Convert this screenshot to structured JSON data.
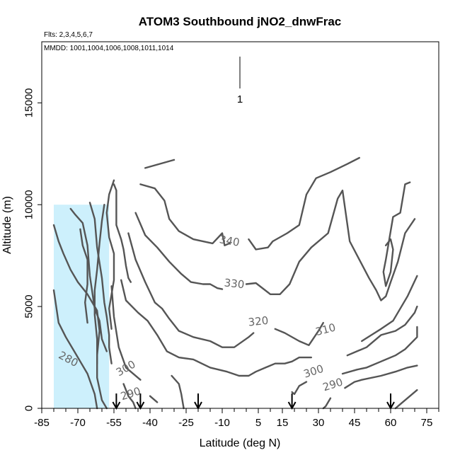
{
  "chart_data": {
    "type": "contour",
    "title": "ATOM3 Southbound jNO2_dnwFrac",
    "subtitle_flights": "Flts: 2,3,4,5,6,7",
    "subtitle_dates": "MMDD: 1001,1004,1006,1008,1011,1014",
    "xlabel": "Latitude (deg N)",
    "ylabel": "Altitude (m)",
    "xlim": [
      -85,
      80
    ],
    "ylim": [
      0,
      18000
    ],
    "x_ticks": [
      -85,
      -70,
      -55,
      -40,
      -25,
      -10,
      5,
      15,
      30,
      45,
      60,
      75
    ],
    "x_tick_labels": [
      "-85",
      "-70",
      "-55",
      "-40",
      "-25",
      "-10",
      "5",
      "15",
      "30",
      "45",
      "60",
      "75"
    ],
    "y_ticks": [
      0,
      5000,
      10000,
      15000
    ],
    "y_tick_labels": [
      "0",
      "5000",
      "10000",
      "15000"
    ],
    "colorbar_value_label": "1",
    "shaded_region": {
      "x": [
        -80,
        -57
      ],
      "y": [
        0,
        10000
      ],
      "color": "#cdf0fc"
    },
    "arrow_latitudes": [
      -54,
      -44,
      -20,
      19,
      60
    ],
    "contour_labels": [
      {
        "text": "340",
        "x": -7,
        "y": 8200,
        "angle": -10
      },
      {
        "text": "330",
        "x": -5,
        "y": 6100,
        "angle": -6
      },
      {
        "text": "320",
        "x": 5,
        "y": 4250,
        "angle": 6
      },
      {
        "text": "310",
        "x": 33,
        "y": 3850,
        "angle": 15
      },
      {
        "text": "300",
        "x": 28,
        "y": 1800,
        "angle": 18
      },
      {
        "text": "290",
        "x": 36,
        "y": 1150,
        "angle": 18
      },
      {
        "text": "300",
        "x": -50,
        "y": 1950,
        "angle": 30
      },
      {
        "text": "290",
        "x": -48,
        "y": 700,
        "angle": 18
      },
      {
        "text": "280",
        "x": -74,
        "y": 2400,
        "angle": -28
      }
    ],
    "contours": [
      {
        "level": 340,
        "points": [
          [
            -42,
            11800
          ],
          [
            -30,
            12200
          ]
        ]
      },
      {
        "level": 340,
        "points": [
          [
            -44,
            11000
          ],
          [
            -38,
            10800
          ],
          [
            -34,
            10200
          ],
          [
            -32,
            9300
          ],
          [
            -28,
            8700
          ],
          [
            -22,
            8300
          ],
          [
            -14,
            8100
          ],
          [
            -10,
            8600
          ],
          [
            -9,
            8000
          ],
          [
            -7,
            8100
          ]
        ]
      },
      {
        "level": 340,
        "points": [
          [
            1,
            8300
          ],
          [
            4,
            7800
          ],
          [
            9,
            7900
          ],
          [
            11,
            8200
          ],
          [
            17,
            8600
          ],
          [
            22,
            9000
          ],
          [
            25,
            10500
          ],
          [
            29,
            11300
          ],
          [
            35,
            11600
          ],
          [
            42,
            12000
          ],
          [
            47,
            12300
          ]
        ]
      },
      {
        "level": 340,
        "points": [
          [
            68,
            11100
          ],
          [
            66,
            11000
          ],
          [
            64,
            9600
          ],
          [
            61,
            9400
          ],
          [
            59,
            8000
          ],
          [
            58,
            7300
          ],
          [
            57,
            6700
          ],
          [
            58,
            6000
          ],
          [
            60,
            6700
          ],
          [
            61,
            7800
          ],
          [
            60,
            8300
          ],
          [
            58,
            8000
          ]
        ]
      },
      {
        "level": 330,
        "points": [
          [
            -46,
            9600
          ],
          [
            -42,
            8500
          ],
          [
            -37,
            7900
          ],
          [
            -32,
            7200
          ],
          [
            -27,
            6600
          ],
          [
            -23,
            6200
          ],
          [
            -18,
            6100
          ],
          [
            -15,
            6100
          ],
          [
            -12,
            5900
          ],
          [
            -10,
            5850
          ]
        ]
      },
      {
        "level": 330,
        "points": [
          [
            0,
            6100
          ],
          [
            4,
            6150
          ],
          [
            10,
            5600
          ],
          [
            14,
            5600
          ],
          [
            18,
            6100
          ],
          [
            22,
            7200
          ],
          [
            27,
            7900
          ],
          [
            34,
            8600
          ],
          [
            38,
            10300
          ],
          [
            40,
            10700
          ],
          [
            43,
            8200
          ],
          [
            47,
            7300
          ],
          [
            51,
            6400
          ],
          [
            54,
            5800
          ],
          [
            56,
            5300
          ],
          [
            58,
            5500
          ],
          [
            60,
            6200
          ],
          [
            63,
            7200
          ],
          [
            66,
            8600
          ],
          [
            70,
            9300
          ]
        ]
      },
      {
        "level": 320,
        "points": [
          [
            -49,
            8600
          ],
          [
            -46,
            7300
          ],
          [
            -42,
            6200
          ],
          [
            -38,
            5200
          ],
          [
            -35,
            4900
          ],
          [
            -32,
            4400
          ],
          [
            -28,
            3800
          ],
          [
            -22,
            3500
          ],
          [
            -15,
            3300
          ],
          [
            -10,
            3000
          ],
          [
            -5,
            3000
          ],
          [
            1,
            3500
          ],
          [
            3,
            3700
          ]
        ]
      },
      {
        "level": 320,
        "points": [
          [
            12,
            3900
          ],
          [
            16,
            3700
          ],
          [
            22,
            3300
          ],
          [
            26,
            3100
          ],
          [
            30,
            3800
          ],
          [
            32,
            4200
          ]
        ]
      },
      {
        "level": 320,
        "points": [
          [
            48,
            3300
          ],
          [
            52,
            3600
          ],
          [
            56,
            3900
          ],
          [
            61,
            4300
          ],
          [
            67,
            5500
          ],
          [
            71,
            6500
          ]
        ]
      },
      {
        "level": 310,
        "points": [
          [
            -52,
            6300
          ],
          [
            -50,
            5300
          ],
          [
            -45,
            4700
          ],
          [
            -41,
            4300
          ],
          [
            -37,
            3600
          ],
          [
            -33,
            2800
          ],
          [
            -28,
            2500
          ],
          [
            -22,
            2400
          ],
          [
            -15,
            2000
          ],
          [
            -8,
            1800
          ],
          [
            -3,
            1600
          ],
          [
            1,
            1600
          ],
          [
            4,
            1800
          ],
          [
            8,
            2000
          ],
          [
            12,
            2200
          ],
          [
            16,
            2200
          ],
          [
            19,
            2300
          ],
          [
            22,
            2500
          ],
          [
            27,
            2500
          ]
        ]
      },
      {
        "level": 310,
        "points": [
          [
            42,
            2600
          ],
          [
            46,
            2800
          ],
          [
            50,
            3000
          ],
          [
            56,
            3600
          ],
          [
            62,
            3800
          ],
          [
            66,
            4100
          ],
          [
            70,
            4700
          ],
          [
            71,
            5000
          ]
        ]
      },
      {
        "level": 300,
        "points": [
          [
            -56,
            6000
          ],
          [
            -55,
            4500
          ],
          [
            -53,
            3000
          ],
          [
            -50,
            2000
          ],
          [
            -44,
            1400
          ]
        ]
      },
      {
        "level": 300,
        "points": [
          [
            -31,
            1600
          ],
          [
            -28,
            1200
          ],
          [
            -27,
            700
          ],
          [
            -26,
            0
          ]
        ]
      },
      {
        "level": 300,
        "points": [
          [
            19,
            800
          ],
          [
            20,
            700
          ],
          [
            22,
            1100
          ],
          [
            25,
            1300
          ]
        ]
      },
      {
        "level": 300,
        "points": [
          [
            40,
            1700
          ],
          [
            46,
            1900
          ],
          [
            50,
            2000
          ],
          [
            56,
            2300
          ],
          [
            62,
            2600
          ],
          [
            66,
            2900
          ],
          [
            71,
            3500
          ],
          [
            71,
            4000
          ]
        ]
      },
      {
        "level": 290,
        "points": [
          [
            -51,
            1200
          ],
          [
            -49,
            600
          ],
          [
            -47,
            300
          ],
          [
            -46,
            0
          ]
        ]
      },
      {
        "level": 290,
        "points": [
          [
            -40,
            600
          ],
          [
            -37,
            300
          ]
        ]
      },
      {
        "level": 290,
        "points": [
          [
            35,
            500
          ],
          [
            33,
            100
          ],
          [
            32,
            0
          ]
        ]
      },
      {
        "level": 290,
        "points": [
          [
            41,
            1000
          ],
          [
            45,
            1300
          ],
          [
            48,
            1400
          ],
          [
            56,
            1600
          ],
          [
            62,
            1800
          ],
          [
            67,
            2000
          ],
          [
            71,
            2100
          ]
        ]
      },
      {
        "level": 290,
        "points": [
          [
            62,
            0
          ],
          [
            64,
            200
          ],
          [
            68,
            600
          ],
          [
            71,
            900
          ]
        ]
      },
      {
        "level": 280,
        "points": [
          [
            -80,
            9000
          ],
          [
            -78,
            8200
          ],
          [
            -76,
            7600
          ],
          [
            -73,
            6800
          ],
          [
            -70,
            6200
          ],
          [
            -66,
            5600
          ],
          [
            -62,
            4800
          ],
          [
            -61,
            3800
          ],
          [
            -62,
            2600
          ],
          [
            -62,
            1500
          ],
          [
            -60,
            400
          ],
          [
            -58,
            0
          ]
        ]
      },
      {
        "level": 280,
        "points": [
          [
            -80,
            5800
          ],
          [
            -79,
            5000
          ],
          [
            -78,
            4200
          ],
          [
            -75,
            3500
          ],
          [
            -72,
            2900
          ],
          [
            -69,
            2300
          ],
          [
            -66,
            1700
          ],
          [
            -63,
            700
          ],
          [
            -62,
            0
          ]
        ]
      },
      {
        "level": 280,
        "points": [
          [
            -73,
            9800
          ],
          [
            -71,
            9500
          ],
          [
            -68,
            9100
          ],
          [
            -66,
            8000
          ],
          [
            -65,
            6500
          ],
          [
            -63,
            4900
          ],
          [
            -61,
            4300
          ],
          [
            -60,
            3400
          ],
          [
            -58,
            2800
          ]
        ]
      },
      {
        "level": 280,
        "points": [
          [
            -65,
            10100
          ],
          [
            -63,
            9300
          ],
          [
            -62,
            7900
          ],
          [
            -60,
            6400
          ],
          [
            -59,
            5200
          ],
          [
            -58,
            4500
          ],
          [
            -57,
            3600
          ],
          [
            -57,
            3000
          ],
          [
            -56,
            2200
          ]
        ]
      },
      {
        "level": 280,
        "points": [
          [
            -59,
            10000
          ],
          [
            -60,
            9200
          ],
          [
            -61,
            8100
          ],
          [
            -62,
            6800
          ],
          [
            -63,
            5800
          ],
          [
            -63,
            4600
          ],
          [
            -62,
            3400
          ],
          [
            -62,
            2200
          ]
        ]
      },
      {
        "level": 280,
        "points": [
          [
            -55,
            11200
          ],
          [
            -57,
            10500
          ],
          [
            -58,
            9600
          ],
          [
            -57,
            8400
          ],
          [
            -55,
            7600
          ],
          [
            -55,
            6300
          ],
          [
            -56,
            5600
          ],
          [
            -57,
            4900
          ],
          [
            -56,
            3900
          ]
        ]
      },
      {
        "level": 280,
        "points": [
          [
            -55,
            11000
          ],
          [
            -54,
            10700
          ],
          [
            -54,
            9800
          ],
          [
            -54,
            9000
          ],
          [
            -52,
            8300
          ],
          [
            -51,
            7800
          ],
          [
            -50,
            7000
          ],
          [
            -49,
            6400
          ],
          [
            -48,
            6200
          ]
        ]
      },
      {
        "level": 280,
        "points": [
          [
            -69,
            8800
          ],
          [
            -68,
            8000
          ],
          [
            -66,
            7300
          ],
          [
            -66,
            6100
          ],
          [
            -67,
            5200
          ],
          [
            -66,
            4200
          ]
        ]
      }
    ]
  }
}
